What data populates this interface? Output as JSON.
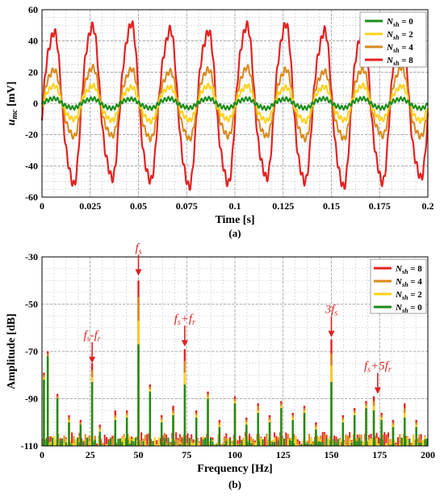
{
  "chart_data": [
    {
      "type": "line",
      "panel_label": "(a)",
      "xlabel": "Time [s]",
      "ylabel_main": "u",
      "ylabel_sub": "mc",
      "ylabel_unit": " [mV]",
      "xlim": [
        0,
        0.2
      ],
      "ylim": [
        -60,
        60
      ],
      "xticks": [
        "0",
        "0.025",
        "0.05",
        "0.075",
        "0.1",
        "0.125",
        "0.15",
        "0.175",
        "0.2"
      ],
      "xtick_values": [
        0,
        0.025,
        0.05,
        0.075,
        0.1,
        0.125,
        0.15,
        0.175,
        0.2
      ],
      "yticks": [
        "60",
        "40",
        "20",
        "0",
        "-20",
        "-40",
        "-60"
      ],
      "ytick_values": [
        60,
        40,
        20,
        0,
        -20,
        -40,
        -60
      ],
      "grid": true,
      "legend_position": "top-right",
      "frequency_hz": 50,
      "series": [
        {
          "legend_main": "N",
          "legend_sub": "sh",
          "legend_value": " = 0",
          "color": "#1a8c1a",
          "amplitude": 3,
          "offset": 0
        },
        {
          "legend_main": "N",
          "legend_sub": "sh",
          "legend_value": " = 2",
          "color": "#ffd21a",
          "amplitude": 11,
          "offset": 0
        },
        {
          "legend_main": "N",
          "legend_sub": "sh",
          "legend_value": " = 4",
          "color": "#d9891a",
          "amplitude": 22,
          "offset": 0
        },
        {
          "legend_main": "N",
          "legend_sub": "sh",
          "legend_value": " = 8",
          "color": "#e32222",
          "amplitude": 50,
          "offset": -1
        }
      ]
    },
    {
      "type": "bar",
      "panel_label": "(b)",
      "xlabel": "Frequency [Hz]",
      "ylabel": "Amplitude [dB]",
      "xlim": [
        0,
        200
      ],
      "ylim": [
        -110,
        -30
      ],
      "xticks": [
        "0",
        "25",
        "50",
        "75",
        "100",
        "125",
        "150",
        "175",
        "200"
      ],
      "xtick_values": [
        0,
        25,
        50,
        75,
        100,
        125,
        150,
        175,
        200
      ],
      "yticks": [
        "-30",
        "-50",
        "-70",
        "-90",
        "-110"
      ],
      "ytick_values": [
        -30,
        -50,
        -70,
        -90,
        -110
      ],
      "grid": true,
      "legend_position": "top-right",
      "series": [
        {
          "legend_main": "N",
          "legend_sub": "sh",
          "legend_value": " = 8",
          "color": "#e32222"
        },
        {
          "legend_main": "N",
          "legend_sub": "sh",
          "legend_value": " = 4",
          "color": "#d9891a"
        },
        {
          "legend_main": "N",
          "legend_sub": "sh",
          "legend_value": " = 2",
          "color": "#ffd21a"
        },
        {
          "legend_main": "N",
          "legend_sub": "sh",
          "legend_value": " = 0",
          "color": "#1a8c1a"
        }
      ],
      "peaks": [
        {
          "f": 1,
          "v": [
            -79,
            -80,
            -81,
            -82
          ]
        },
        {
          "f": 3,
          "v": [
            -70,
            -71,
            -72,
            -72
          ]
        },
        {
          "f": 8,
          "v": [
            -88,
            -89,
            -90,
            -90
          ]
        },
        {
          "f": 14,
          "v": [
            -97,
            -98,
            -99,
            -100
          ]
        },
        {
          "f": 20,
          "v": [
            -99,
            -100,
            -101,
            -101
          ]
        },
        {
          "f": 26,
          "v": [
            -75,
            -78,
            -81,
            -83
          ]
        },
        {
          "f": 30,
          "v": [
            -101,
            -102,
            -103,
            -104
          ]
        },
        {
          "f": 38,
          "v": [
            -95,
            -97,
            -98,
            -99
          ]
        },
        {
          "f": 44,
          "v": [
            -95,
            -96,
            -97,
            -98
          ]
        },
        {
          "f": 50,
          "v": [
            -40,
            -47,
            -57,
            -67
          ]
        },
        {
          "f": 56,
          "v": [
            -84,
            -85,
            -86,
            -87
          ]
        },
        {
          "f": 62,
          "v": [
            -97,
            -98,
            -99,
            -100
          ]
        },
        {
          "f": 68,
          "v": [
            -93,
            -95,
            -96,
            -97
          ]
        },
        {
          "f": 74,
          "v": [
            -69,
            -74,
            -79,
            -84
          ]
        },
        {
          "f": 80,
          "v": [
            -95,
            -96,
            -97,
            -98
          ]
        },
        {
          "f": 86,
          "v": [
            -87,
            -88,
            -89,
            -90
          ]
        },
        {
          "f": 92,
          "v": [
            -99,
            -100,
            -101,
            -102
          ]
        },
        {
          "f": 100,
          "v": [
            -89,
            -90,
            -91,
            -92
          ]
        },
        {
          "f": 106,
          "v": [
            -98,
            -99,
            -100,
            -101
          ]
        },
        {
          "f": 112,
          "v": [
            -92,
            -93,
            -95,
            -96
          ]
        },
        {
          "f": 118,
          "v": [
            -97,
            -98,
            -99,
            -100
          ]
        },
        {
          "f": 124,
          "v": [
            -91,
            -92,
            -93,
            -94
          ]
        },
        {
          "f": 130,
          "v": [
            -96,
            -97,
            -98,
            -99
          ]
        },
        {
          "f": 136,
          "v": [
            -93,
            -94,
            -95,
            -96
          ]
        },
        {
          "f": 142,
          "v": [
            -100,
            -101,
            -102,
            -103
          ]
        },
        {
          "f": 150,
          "v": [
            -65,
            -71,
            -76,
            -83
          ]
        },
        {
          "f": 156,
          "v": [
            -97,
            -98,
            -99,
            -100
          ]
        },
        {
          "f": 162,
          "v": [
            -94,
            -95,
            -96,
            -97
          ]
        },
        {
          "f": 168,
          "v": [
            -91,
            -92,
            -93,
            -94
          ]
        },
        {
          "f": 172,
          "v": [
            -89,
            -91,
            -93,
            -95
          ]
        },
        {
          "f": 176,
          "v": [
            -96,
            -97,
            -98,
            -99
          ]
        },
        {
          "f": 182,
          "v": [
            -99,
            -100,
            -101,
            -102
          ]
        },
        {
          "f": 188,
          "v": [
            -92,
            -94,
            -96,
            -98
          ]
        },
        {
          "f": 194,
          "v": [
            -99,
            -100,
            -101,
            -102
          ]
        }
      ],
      "annotations": [
        {
          "main": "f",
          "sub": "s",
          "rest": "",
          "f": 50,
          "tip": -38
        },
        {
          "main": "f",
          "sub": "s",
          "rest": "-f",
          "sub2": "r",
          "f": 26,
          "tip": -75
        },
        {
          "main": "f",
          "sub": "s",
          "rest": "+f",
          "sub2": "r",
          "f": 74,
          "tip": -68
        },
        {
          "main": "3f",
          "sub": "s",
          "rest": "",
          "f": 150,
          "tip": -64
        },
        {
          "main": "f",
          "sub": "s",
          "rest": "+5f",
          "sub2": "r",
          "f": 174,
          "tip": -88
        }
      ]
    }
  ]
}
